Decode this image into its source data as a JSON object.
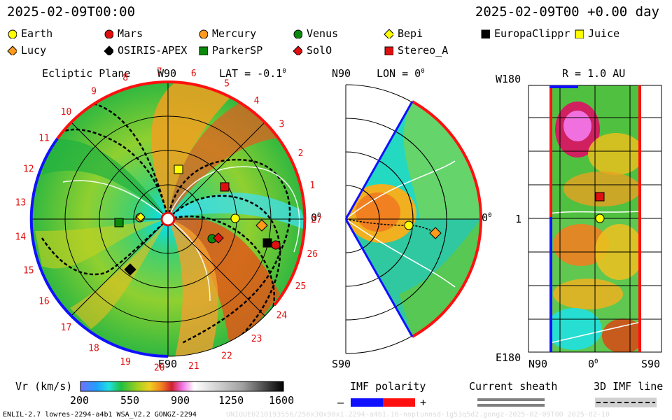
{
  "header": {
    "datetime_left": "2025-02-09T00:00",
    "datetime_right": "2025-02-09T00 +0.00 day"
  },
  "legend": [
    {
      "label": "Earth",
      "shape": "circle",
      "color": "#ffff00"
    },
    {
      "label": "Mars",
      "shape": "circle",
      "color": "#e01010"
    },
    {
      "label": "Mercury",
      "shape": "circle",
      "color": "#ff9a1a"
    },
    {
      "label": "Venus",
      "shape": "circle",
      "color": "#0a8a0a"
    },
    {
      "label": "Bepi",
      "shape": "diamond",
      "color": "#ffff00"
    },
    {
      "label": "EuropaClippr",
      "shape": "square",
      "color": "#000000"
    },
    {
      "label": "Juice",
      "shape": "square",
      "color": "#ffff00"
    },
    {
      "label": "Lucy",
      "shape": "diamond",
      "color": "#ff9a1a"
    },
    {
      "label": "OSIRIS-APEX",
      "shape": "diamond",
      "color": "#000000"
    },
    {
      "label": "ParkerSP",
      "shape": "square",
      "color": "#0a8a0a"
    },
    {
      "label": "SolO",
      "shape": "diamond",
      "color": "#e01010"
    },
    {
      "label": "Stereo_A",
      "shape": "square",
      "color": "#e01010"
    }
  ],
  "ecliptic_panel": {
    "title": "Ecliptic Plane",
    "lat_label": "LAT = -0.1",
    "lat_sup": "0",
    "top_label": "W90",
    "bottom_label": "E90",
    "right_label": "0",
    "right_sup": "0",
    "carrington_numbers": [
      "19",
      "20",
      "21",
      "22",
      "23",
      "24",
      "25",
      "26",
      "27",
      "1",
      "2",
      "3",
      "4",
      "5",
      "6",
      "7",
      "8",
      "9",
      "10",
      "11",
      "12",
      "13",
      "14",
      "15",
      "16",
      "17",
      "18"
    ]
  },
  "meridional_panel": {
    "top_left_label": "N90",
    "lon_label": "LON = 0",
    "lon_sup": "0",
    "right_label": "0",
    "right_sup": "0",
    "bottom_left_label": "S90"
  },
  "radial_panel": {
    "title": "R = 1.0 AU",
    "top_left_label": "W180",
    "mid_left_label": "1",
    "bottom_left_label": "E180",
    "bottom_labels": [
      "N90",
      "0",
      "S90"
    ],
    "bottom_mid_sup": "0"
  },
  "colorbar": {
    "label": "Vr (km/s)",
    "ticks": [
      "200",
      "550",
      "900",
      "1250",
      "1600"
    ],
    "range": [
      200,
      1600
    ]
  },
  "imf_polarity": {
    "label": "IMF polarity",
    "minus": "–",
    "plus": "+"
  },
  "current_sheath": {
    "label": "Current sheath"
  },
  "imf_line": {
    "label": "3D IMF line"
  },
  "footer": {
    "left": "ENLIL-2.7 lowres-2294-a4b1 WSA_V2.2 GONGZ-2294",
    "right": "UNIQUE0210193556/256x30x90x1.2294-a4b1.16-noptunnsd-1g53q5d2.gongz-2025-02-09T00    2025-02-10"
  }
}
